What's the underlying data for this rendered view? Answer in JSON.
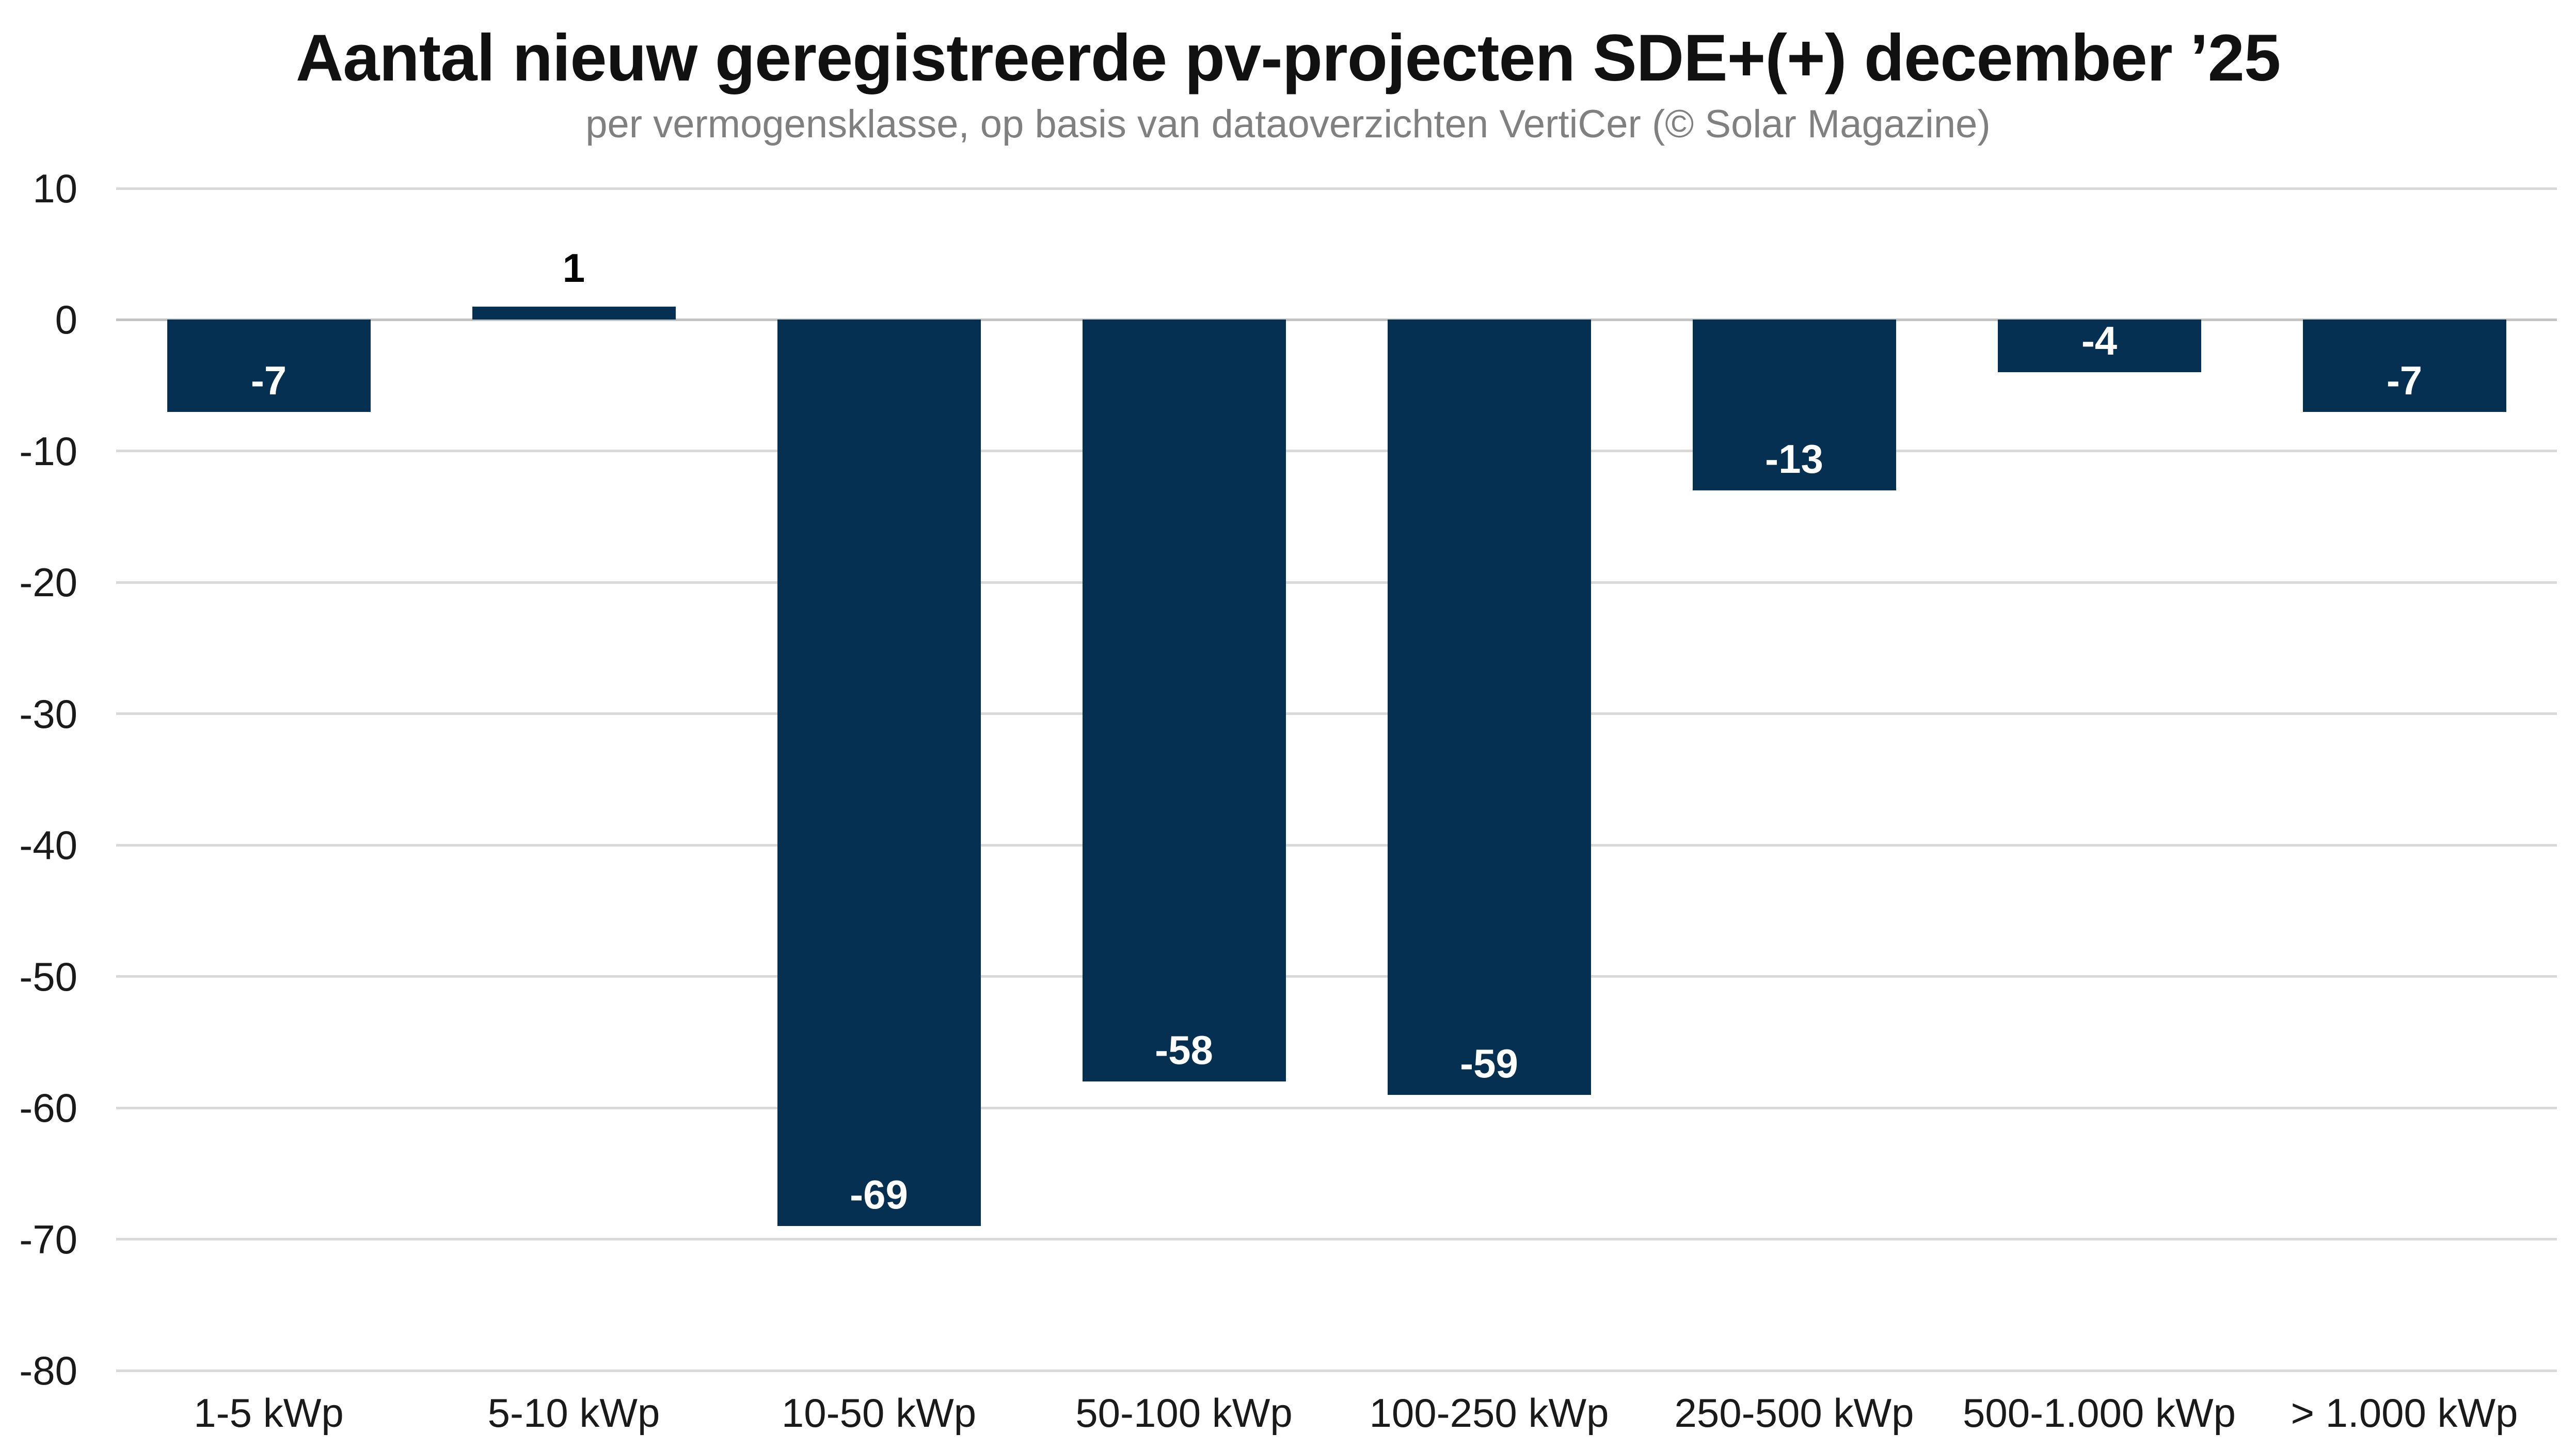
{
  "colors": {
    "background": "#ffffff",
    "bar": "#053052",
    "grid": "#d9d9d9",
    "zero_line": "#c3c3c3",
    "title": "#111111",
    "subtitle": "#808080",
    "axis_text": "#1a1a1a",
    "data_label_inside": "#ffffff",
    "data_label_outside": "#000000"
  },
  "chart_data": {
    "type": "bar",
    "title": "Aantal nieuw geregistreerde pv-projecten SDE+(+) december ’25",
    "subtitle": "per vermogensklasse, op basis van dataoverzichten VertiCer (© Solar Magazine)",
    "categories": [
      "1-5 kWp",
      "5-10 kWp",
      "10-50 kWp",
      "50-100 kWp",
      "100-250 kWp",
      "250-500 kWp",
      "500-1.000 kWp",
      "> 1.000 kWp"
    ],
    "values": [
      -7,
      1,
      -69,
      -58,
      -59,
      -13,
      -4,
      -7
    ],
    "data_labels": [
      "-7",
      "1",
      "-69",
      "-58",
      "-59",
      "-13",
      "-4",
      "-7"
    ],
    "yticks": [
      10,
      0,
      -10,
      -20,
      -30,
      -40,
      -50,
      -60,
      -70,
      -80
    ],
    "ytick_labels": [
      "10",
      "0",
      "-10",
      "-20",
      "-30",
      "-40",
      "-50",
      "-60",
      "-70",
      "-80"
    ],
    "ylim": [
      -80,
      10
    ],
    "xlabel": "",
    "ylabel": "",
    "grid": "horizontal",
    "legend": "none"
  }
}
